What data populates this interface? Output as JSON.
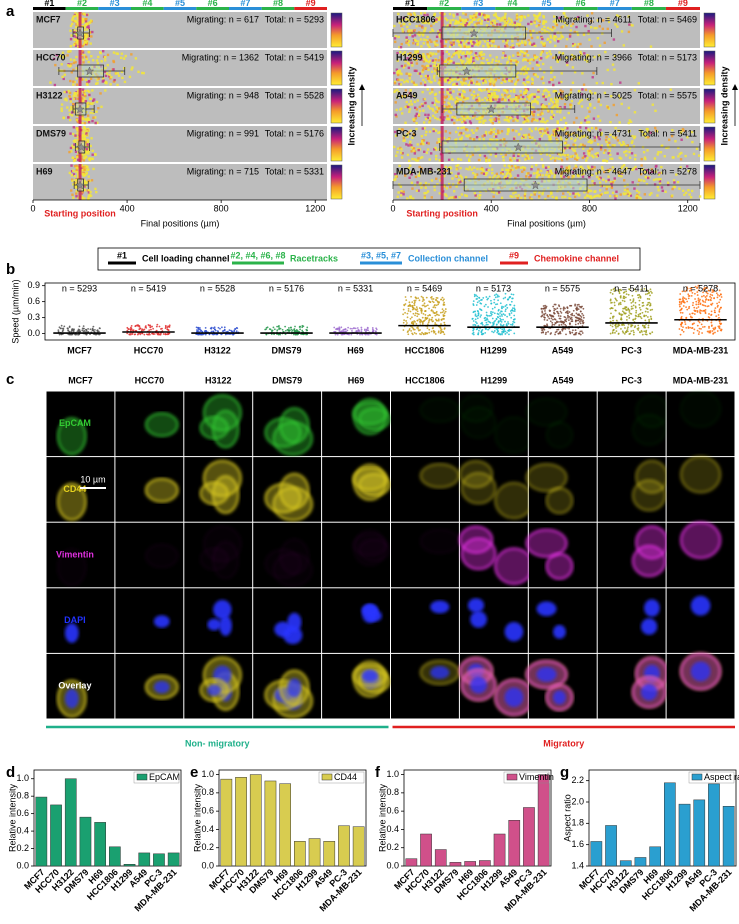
{
  "panel_labels": [
    "a",
    "b",
    "c",
    "d",
    "e",
    "f",
    "g"
  ],
  "channels": [
    {
      "label": "#1",
      "color": "#000000"
    },
    {
      "label": "#2",
      "color": "#2bb34a"
    },
    {
      "label": "#3",
      "color": "#2a8fd8"
    },
    {
      "label": "#4",
      "color": "#2bb34a"
    },
    {
      "label": "#5",
      "color": "#2a8fd8"
    },
    {
      "label": "#6",
      "color": "#2bb34a"
    },
    {
      "label": "#7",
      "color": "#2a8fd8"
    },
    {
      "label": "#8",
      "color": "#2bb34a"
    },
    {
      "label": "#9",
      "color": "#e02020"
    }
  ],
  "channel_legend": [
    {
      "key": "#1",
      "text": "Cell loading channel",
      "color": "#000000"
    },
    {
      "key": "#2, #4, #6, #8",
      "text": "Racetracks",
      "color": "#2bb34a"
    },
    {
      "key": "#3, #5, #7",
      "text": "Collection channel",
      "color": "#2a8fd8"
    },
    {
      "key": "#9",
      "text": "Chemokine channel",
      "color": "#e02020"
    }
  ],
  "microscopy": {
    "columns": [
      "MCF7",
      "HCC70",
      "H3122",
      "DMS79",
      "H69",
      "HCC1806",
      "H1299",
      "A549",
      "PC-3",
      "MDA-MB-231"
    ],
    "rows": [
      {
        "label": "EpCAM",
        "color": "#33cc33"
      },
      {
        "label": "CD44",
        "color": "#e6d21e"
      },
      {
        "label": "Vimentin",
        "color": "#e030e0"
      },
      {
        "label": "DAPI",
        "color": "#2233ff"
      },
      {
        "label": "Overlay",
        "color": "#ffffff"
      }
    ],
    "scale_bar": "10 µm",
    "groups": [
      {
        "label": "Non- migratory",
        "color": "#1fb08a"
      },
      {
        "label": "Migratory",
        "color": "#e02020"
      }
    ]
  },
  "chart_data": [
    {
      "type": "box",
      "xlabel": "Final positions (µm)",
      "start_label": "Starting position",
      "density_label": "Increasing density",
      "xlim": [
        0,
        1250
      ],
      "xticks": [
        0,
        400,
        800,
        1200
      ],
      "categories": [
        "MCF7",
        "HCC70",
        "H3122",
        "DMS79",
        "H69"
      ],
      "migrating": [
        "Migrating: n = 617",
        "Migrating: n = 1362",
        "Migrating: n = 948",
        "Migrating: n = 991",
        "Migrating: n = 715"
      ],
      "totals": [
        "Total: n = 5293",
        "Total: n = 5419",
        "Total: n = 5528",
        "Total: n = 5176",
        "Total: n = 5331"
      ],
      "boxes": [
        {
          "min": 170,
          "q1": 190,
          "median": 200,
          "q3": 215,
          "max": 240
        },
        {
          "min": 110,
          "q1": 190,
          "median": 240,
          "q3": 300,
          "max": 390
        },
        {
          "min": 170,
          "q1": 180,
          "median": 200,
          "q3": 225,
          "max": 260
        },
        {
          "min": 180,
          "q1": 195,
          "median": 205,
          "q3": 220,
          "max": 240
        },
        {
          "min": 175,
          "q1": 190,
          "median": 200,
          "q3": 215,
          "max": 235
        }
      ]
    },
    {
      "type": "box",
      "xlabel": "Final positions (µm)",
      "start_label": "Starting position",
      "density_label": "Increasing density",
      "xlim": [
        0,
        1250
      ],
      "xticks": [
        0,
        400,
        800,
        1200
      ],
      "categories": [
        "HCC1806",
        "H1299",
        "A549",
        "PC-3",
        "MDA-MB-231"
      ],
      "migrating": [
        "Migrating: n = 4611",
        "Migrating: n = 3966",
        "Migrating: n = 5025",
        "Migrating: n = 4731",
        "Migrating: n = 4647"
      ],
      "totals": [
        "Total: n = 5469",
        "Total: n = 5173",
        "Total: n = 5575",
        "Total: n = 5411",
        "Total: n = 5278"
      ],
      "boxes": [
        {
          "min": 0,
          "q1": 200,
          "median": 330,
          "q3": 540,
          "max": 890
        },
        {
          "min": 180,
          "q1": 190,
          "median": 300,
          "q3": 500,
          "max": 830
        },
        {
          "min": 200,
          "q1": 260,
          "median": 400,
          "q3": 560,
          "max": 740
        },
        {
          "min": 190,
          "q1": 200,
          "median": 510,
          "q3": 690,
          "max": 1250
        },
        {
          "min": 0,
          "q1": 290,
          "median": 580,
          "q3": 790,
          "max": 1250
        }
      ]
    },
    {
      "type": "strip",
      "ylabel": "Speed (µm/min)",
      "ylim": [
        -0.12,
        0.95
      ],
      "yticks": [
        {
          "value": 0,
          "label": "0.0"
        },
        0.3,
        0.6,
        0.9
      ],
      "categories": [
        "MCF7",
        "HCC70",
        "H3122",
        "DMS79",
        "H69",
        "HCC1806",
        "H1299",
        "A549",
        "PC-3",
        "MDA-MB-231"
      ],
      "n_labels": [
        "n = 5293",
        "n = 5419",
        "n = 5528",
        "n = 5176",
        "n = 5331",
        "n = 5469",
        "n = 5173",
        "n = 5575",
        "n = 5411",
        "n = 5278"
      ],
      "values": [
        0.01,
        0.03,
        0.01,
        0.01,
        0.01,
        0.15,
        0.12,
        0.12,
        0.2,
        0.26
      ],
      "max": [
        0.15,
        0.18,
        0.12,
        0.15,
        0.12,
        0.7,
        0.75,
        0.55,
        0.85,
        0.9
      ],
      "colors": [
        "#555555",
        "#e03030",
        "#3050d0",
        "#2a9a50",
        "#a070d0",
        "#c8a020",
        "#20c0d0",
        "#7a4a3a",
        "#a0a020",
        "#ff7010"
      ]
    },
    {
      "type": "bar",
      "ylabel": "Relative intensity",
      "ylim": [
        0,
        1.1
      ],
      "yticks": [
        {
          "value": 0,
          "label": "0.0"
        },
        0.2,
        0.4,
        0.6,
        0.8,
        {
          "value": 1,
          "label": "1.0"
        }
      ],
      "categories": [
        "MCF7",
        "HCC70",
        "H3122",
        "DMS79",
        "H69",
        "HCC1806",
        "H1299",
        "A549",
        "PC-3",
        "MDA-MB-231"
      ],
      "series": [
        {
          "name": "EpCAM",
          "color": "#1aa070",
          "values": [
            0.79,
            0.7,
            1.0,
            0.56,
            0.5,
            0.22,
            0.02,
            0.15,
            0.14,
            0.15
          ]
        }
      ]
    },
    {
      "type": "bar",
      "ylabel": "Relative intensity",
      "ylim": [
        0,
        1.05
      ],
      "yticks": [
        {
          "value": 0,
          "label": "0.0"
        },
        0.2,
        0.4,
        0.6,
        0.8,
        {
          "value": 1,
          "label": "1.0"
        }
      ],
      "categories": [
        "MCF7",
        "HCC70",
        "H3122",
        "DMS79",
        "H69",
        "HCC1806",
        "H1299",
        "A549",
        "PC-3",
        "MDA-MB-231"
      ],
      "series": [
        {
          "name": "CD44",
          "color": "#d8cc50",
          "values": [
            0.95,
            0.97,
            1.0,
            0.93,
            0.9,
            0.27,
            0.3,
            0.27,
            0.44,
            0.43
          ]
        }
      ]
    },
    {
      "type": "bar",
      "ylabel": "Relative intensity",
      "ylim": [
        0,
        1.05
      ],
      "yticks": [
        {
          "value": 0,
          "label": "0.0"
        },
        0.2,
        0.4,
        0.6,
        0.8,
        {
          "value": 1,
          "label": "1.0"
        }
      ],
      "categories": [
        "MCF7",
        "HCC70",
        "H3122",
        "DMS79",
        "H69",
        "HCC1806",
        "H1299",
        "A549",
        "PC-3",
        "MDA-MB-231"
      ],
      "series": [
        {
          "name": "Vimentin",
          "color": "#d0508a",
          "values": [
            0.08,
            0.35,
            0.18,
            0.04,
            0.05,
            0.06,
            0.35,
            0.5,
            0.64,
            1.0
          ]
        }
      ]
    },
    {
      "type": "bar",
      "ylabel": "Aspect ratio",
      "ylim": [
        1.4,
        2.3
      ],
      "yticks": [
        1.4,
        1.6,
        1.8,
        {
          "value": 2,
          "label": "2.0"
        },
        2.2
      ],
      "categories": [
        "MCF7",
        "HCC70",
        "H3122",
        "DMS79",
        "H69",
        "HCC1806",
        "H1299",
        "A549",
        "PC-3",
        "MDA-MB-231"
      ],
      "series": [
        {
          "name": "Aspect ratio",
          "color": "#2a9fd0",
          "values": [
            1.63,
            1.78,
            1.45,
            1.48,
            1.58,
            2.18,
            1.98,
            2.02,
            2.17,
            1.96
          ]
        }
      ]
    }
  ]
}
